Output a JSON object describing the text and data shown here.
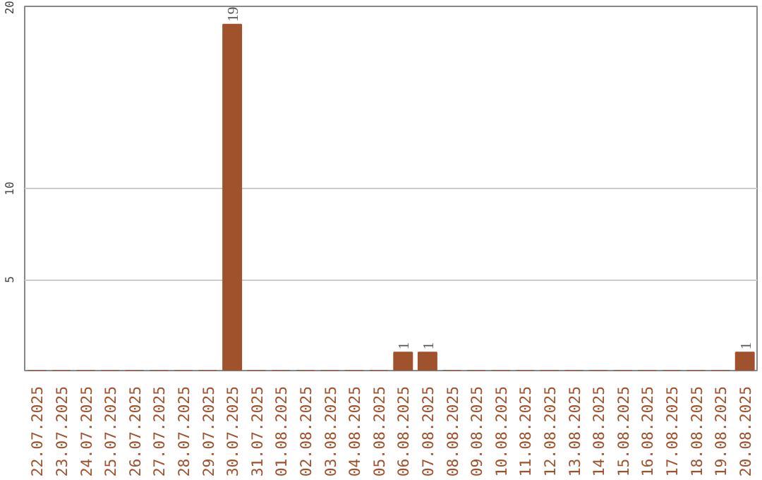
{
  "chart_data": {
    "type": "bar",
    "categories": [
      "22.07.2025",
      "23.07.2025",
      "24.07.2025",
      "25.07.2025",
      "26.07.2025",
      "27.07.2025",
      "28.07.2025",
      "29.07.2025",
      "30.07.2025",
      "31.07.2025",
      "01.08.2025",
      "02.08.2025",
      "03.08.2025",
      "04.08.2025",
      "05.08.2025",
      "06.08.2025",
      "07.08.2025",
      "08.08.2025",
      "09.08.2025",
      "10.08.2025",
      "11.08.2025",
      "12.08.2025",
      "13.08.2025",
      "14.08.2025",
      "15.08.2025",
      "16.08.2025",
      "17.08.2025",
      "18.08.2025",
      "19.08.2025",
      "20.08.2025"
    ],
    "values": [
      0,
      0,
      0,
      0,
      0,
      0,
      0,
      0,
      19,
      0,
      0,
      0,
      0,
      0,
      0,
      1,
      1,
      0,
      0,
      0,
      0,
      0,
      0,
      0,
      0,
      0,
      0,
      0,
      0,
      1
    ],
    "value_labels": [
      null,
      null,
      null,
      null,
      null,
      null,
      null,
      null,
      "19",
      null,
      null,
      null,
      null,
      null,
      null,
      "1",
      "1",
      null,
      null,
      null,
      null,
      null,
      null,
      null,
      null,
      null,
      null,
      null,
      null,
      "1"
    ],
    "color": "#a0522d",
    "ylim": [
      0,
      20
    ],
    "yticks": [
      5,
      10,
      20
    ],
    "grid": "y"
  }
}
